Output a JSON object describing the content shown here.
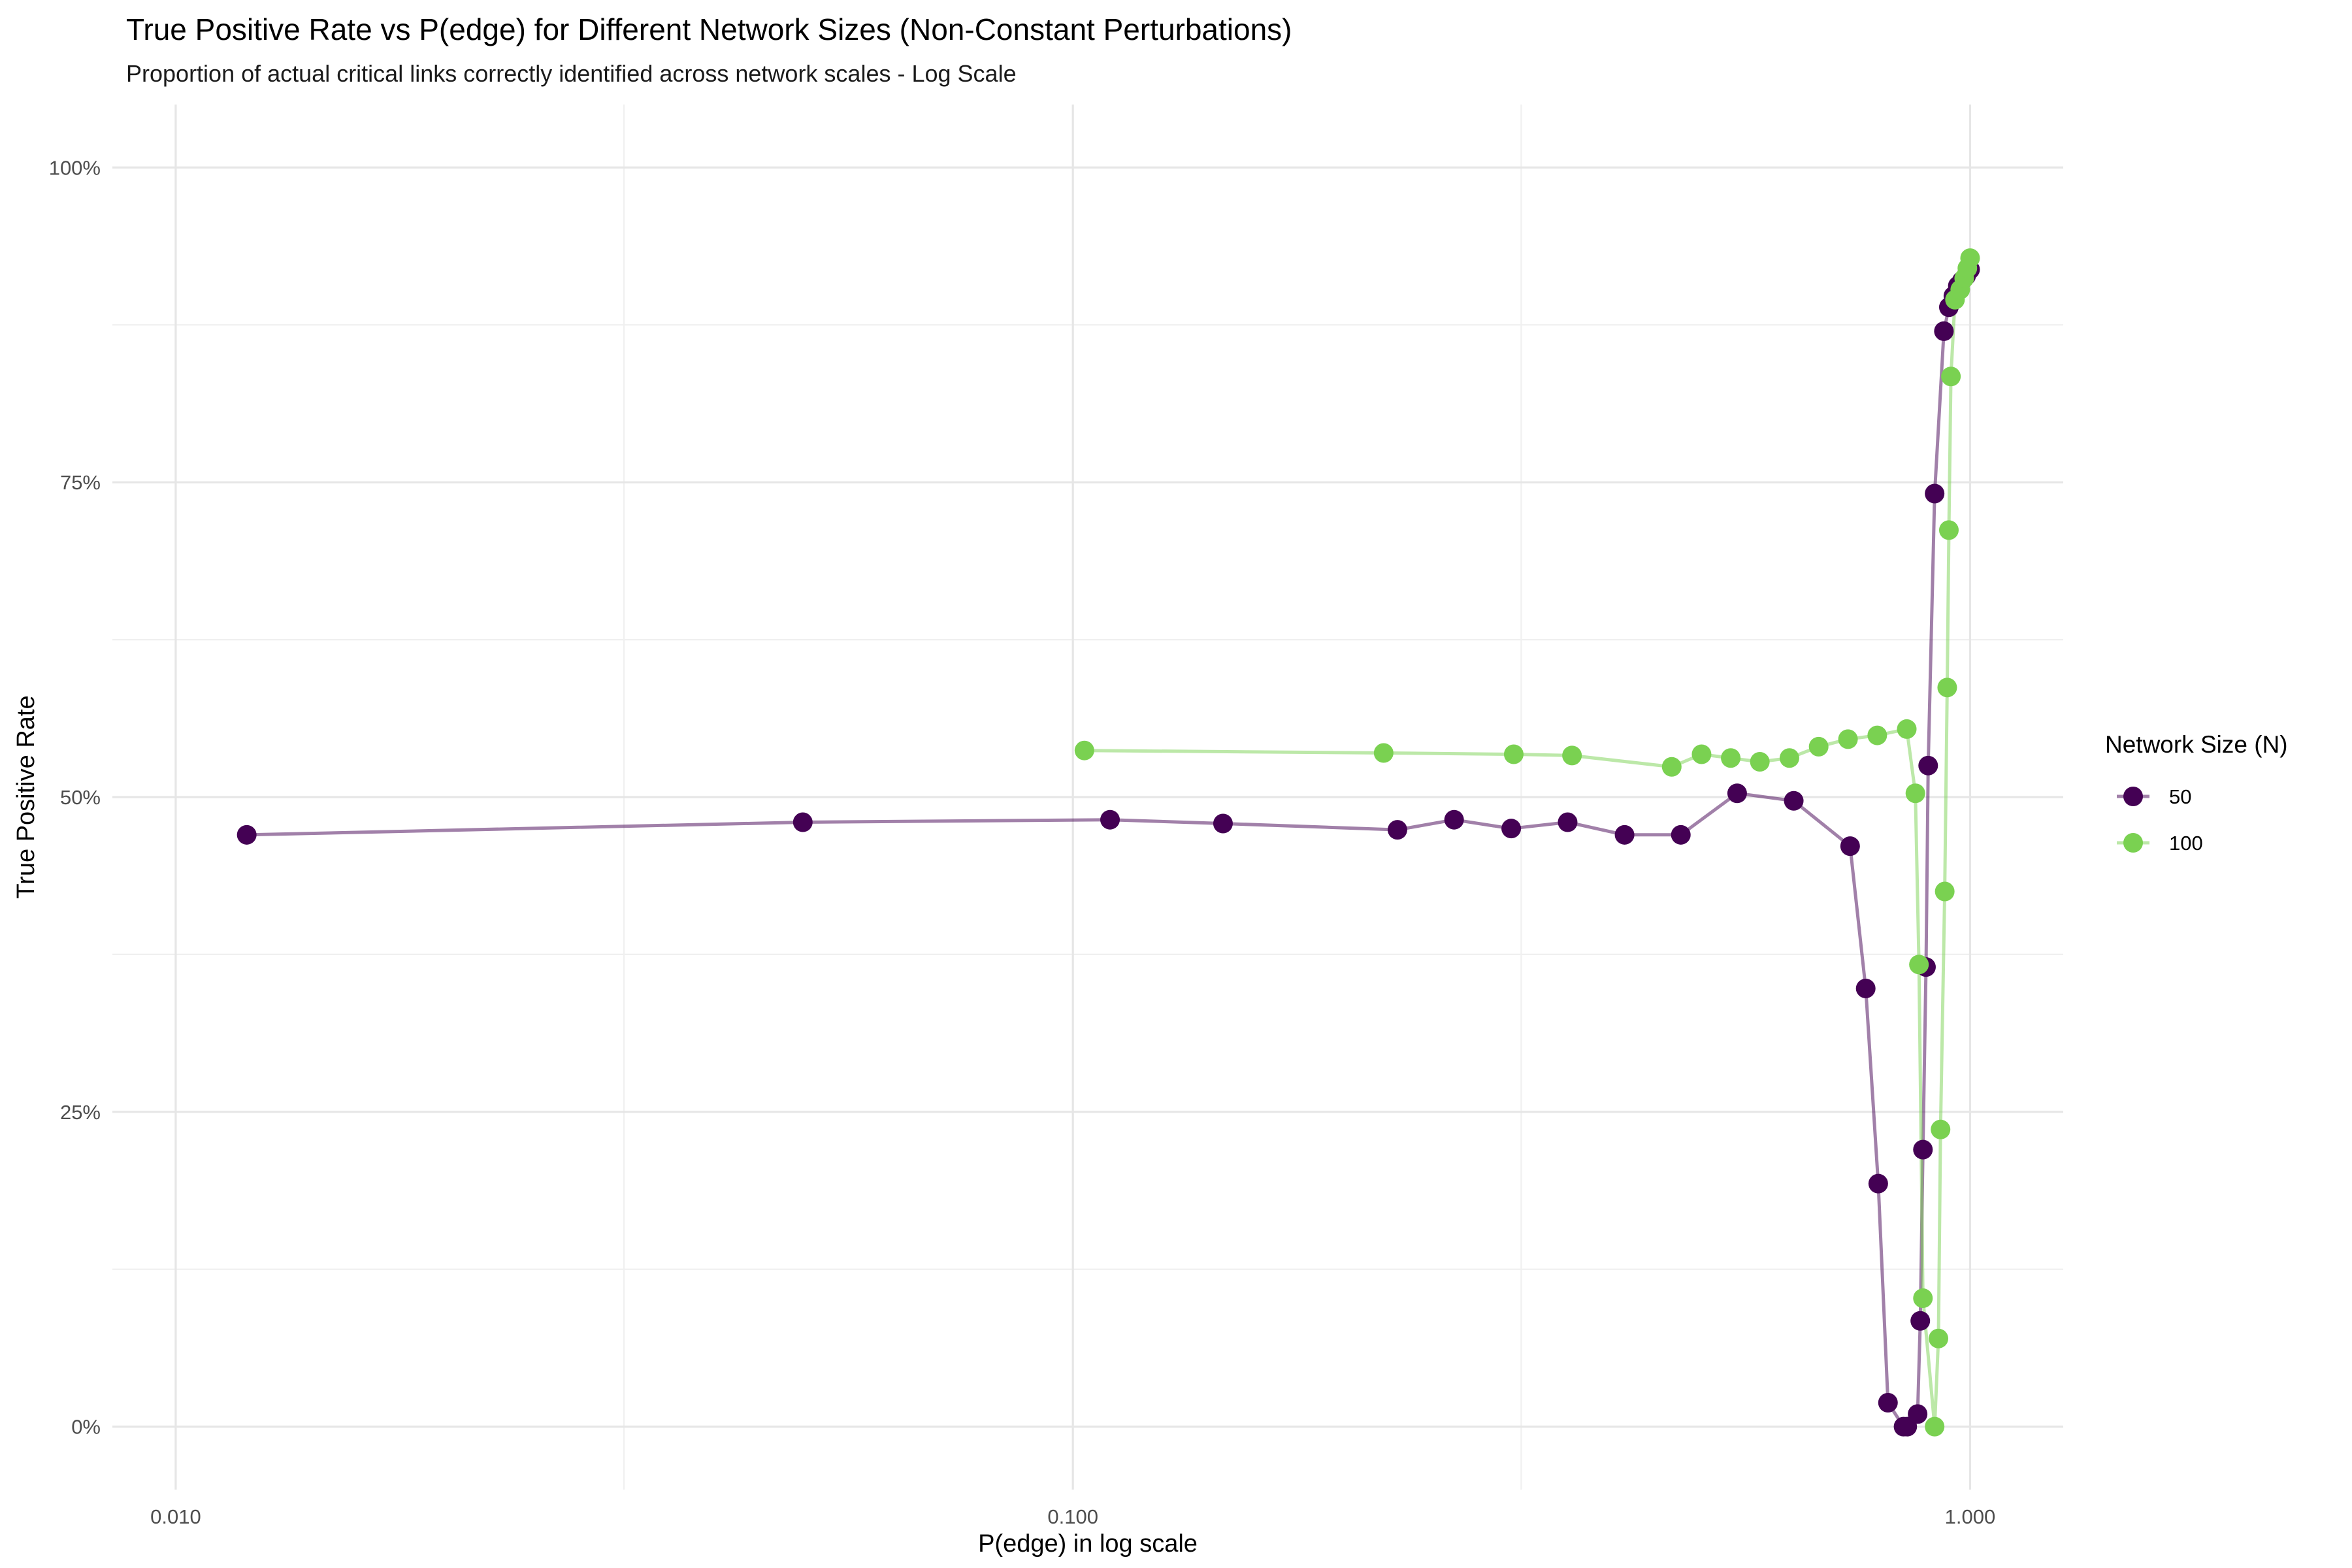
{
  "chart_data": {
    "type": "line",
    "title": "True Positive Rate vs P(edge) for Different Network Sizes (Non-Constant Perturbations)",
    "subtitle": "Proportion of actual critical links correctly identified across network scales - Log Scale",
    "xlabel": "P(edge) in log scale",
    "ylabel": "True Positive Rate",
    "x_scale": "log10",
    "xlim": [
      0.0085,
      1.27
    ],
    "ylim": [
      -0.05,
      1.05
    ],
    "x_ticks": [
      0.01,
      0.1,
      1.0
    ],
    "x_tick_labels": [
      "0.010",
      "0.100",
      "1.000"
    ],
    "x_minor_ticks": [
      0.0316,
      0.316
    ],
    "y_ticks": [
      0,
      0.25,
      0.5,
      0.75,
      1.0
    ],
    "y_tick_labels": [
      "0%",
      "25%",
      "50%",
      "75%",
      "100%"
    ],
    "y_minor_ticks": [
      0.125,
      0.375,
      0.625,
      0.875
    ],
    "grid": true,
    "legend": {
      "title": "Network Size (N)",
      "position": "right"
    },
    "series": [
      {
        "name": "50",
        "color": "#440154",
        "x": [
          0.012,
          0.05,
          0.11,
          0.147,
          0.23,
          0.266,
          0.308,
          0.356,
          0.412,
          0.476,
          0.55,
          0.636,
          0.735,
          0.765,
          0.79,
          0.81,
          0.843,
          0.851,
          0.874,
          0.88,
          0.886,
          0.893,
          0.898,
          0.913,
          0.935,
          0.947,
          0.958,
          0.969,
          0.979,
          0.99,
          1.0
        ],
        "y": [
          0.47,
          0.48,
          0.482,
          0.479,
          0.474,
          0.482,
          0.475,
          0.48,
          0.47,
          0.47,
          0.503,
          0.497,
          0.461,
          0.348,
          0.193,
          0.019,
          0.0,
          0.0,
          0.01,
          0.084,
          0.22,
          0.365,
          0.525,
          0.741,
          0.87,
          0.889,
          0.898,
          0.906,
          0.91,
          0.914,
          0.919
        ]
      },
      {
        "name": "100",
        "color": "#7ad151",
        "x": [
          0.103,
          0.222,
          0.31,
          0.36,
          0.465,
          0.502,
          0.541,
          0.583,
          0.629,
          0.678,
          0.731,
          0.788,
          0.85,
          0.869,
          0.877,
          0.886,
          0.913,
          0.922,
          0.927,
          0.937,
          0.943,
          0.947,
          0.952,
          0.962,
          0.975,
          0.985,
          0.993,
          1.0
        ],
        "y": [
          0.537,
          0.535,
          0.534,
          0.533,
          0.524,
          0.534,
          0.531,
          0.528,
          0.531,
          0.54,
          0.546,
          0.549,
          0.554,
          0.503,
          0.367,
          0.102,
          0.0,
          0.07,
          0.236,
          0.425,
          0.587,
          0.712,
          0.834,
          0.895,
          0.903,
          0.912,
          0.92,
          0.928
        ]
      }
    ]
  }
}
